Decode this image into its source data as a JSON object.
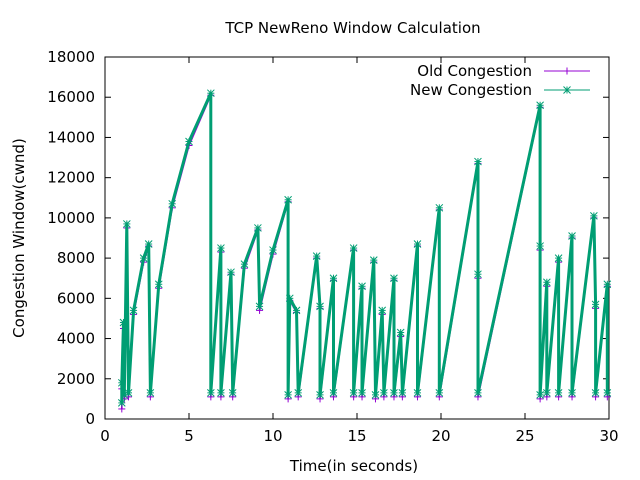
{
  "chart_data": {
    "type": "line",
    "title": "TCP NewReno Window Calculation",
    "xlabel": "Time(in seconds)",
    "ylabel": "Congestion Window(cwnd)",
    "xlim": [
      0,
      30
    ],
    "ylim": [
      0,
      18000
    ],
    "x_ticks": [
      0,
      5,
      10,
      15,
      20,
      25,
      30
    ],
    "y_ticks": [
      0,
      2000,
      4000,
      6000,
      8000,
      10000,
      12000,
      14000,
      16000,
      18000
    ],
    "grid": false,
    "legend_position": "top-right",
    "series": [
      {
        "name": "Old Congestion",
        "color": "#9400d3",
        "marker": "plus",
        "points": [
          [
            1.0,
            500
          ],
          [
            1.0,
            1500
          ],
          [
            1.1,
            4500
          ],
          [
            1.15,
            1000
          ],
          [
            1.3,
            9500
          ],
          [
            1.4,
            1100
          ],
          [
            1.7,
            5200
          ],
          [
            2.3,
            7800
          ],
          [
            2.6,
            8600
          ],
          [
            2.7,
            1100
          ],
          [
            3.2,
            6500
          ],
          [
            4.0,
            10500
          ],
          [
            5.0,
            13600
          ],
          [
            6.3,
            16100
          ],
          [
            6.3,
            1100
          ],
          [
            6.9,
            8300
          ],
          [
            6.9,
            1100
          ],
          [
            7.5,
            7200
          ],
          [
            7.6,
            1100
          ],
          [
            8.3,
            7500
          ],
          [
            9.1,
            9400
          ],
          [
            9.2,
            5400
          ],
          [
            10.0,
            8200
          ],
          [
            10.9,
            10800
          ],
          [
            10.9,
            1000
          ],
          [
            11.0,
            5900
          ],
          [
            11.4,
            5300
          ],
          [
            11.5,
            1100
          ],
          [
            12.6,
            8000
          ],
          [
            12.8,
            5500
          ],
          [
            12.8,
            1000
          ],
          [
            13.6,
            6900
          ],
          [
            13.6,
            1100
          ],
          [
            14.8,
            8400
          ],
          [
            14.8,
            1100
          ],
          [
            15.3,
            6500
          ],
          [
            15.3,
            1100
          ],
          [
            16.0,
            7800
          ],
          [
            16.1,
            1000
          ],
          [
            16.5,
            5200
          ],
          [
            16.6,
            1100
          ],
          [
            17.2,
            6900
          ],
          [
            17.2,
            1100
          ],
          [
            17.6,
            4100
          ],
          [
            17.7,
            1100
          ],
          [
            18.6,
            8600
          ],
          [
            18.6,
            1100
          ],
          [
            19.9,
            10400
          ],
          [
            19.9,
            1100
          ],
          [
            22.2,
            12700
          ],
          [
            22.2,
            7000
          ],
          [
            22.2,
            1100
          ],
          [
            25.9,
            15500
          ],
          [
            25.9,
            8400
          ],
          [
            25.9,
            1000
          ],
          [
            26.3,
            6600
          ],
          [
            26.3,
            1100
          ],
          [
            27.0,
            7800
          ],
          [
            27.0,
            1100
          ],
          [
            27.8,
            9000
          ],
          [
            27.8,
            1100
          ],
          [
            29.1,
            10000
          ],
          [
            29.2,
            5500
          ],
          [
            29.2,
            1100
          ],
          [
            29.9,
            6600
          ],
          [
            29.9,
            1100
          ]
        ]
      },
      {
        "name": "New Congestion",
        "color": "#009e73",
        "marker": "cross",
        "points": [
          [
            1.0,
            800
          ],
          [
            1.0,
            1800
          ],
          [
            1.1,
            4800
          ],
          [
            1.15,
            1200
          ],
          [
            1.3,
            9700
          ],
          [
            1.4,
            1300
          ],
          [
            1.7,
            5400
          ],
          [
            2.3,
            8000
          ],
          [
            2.6,
            8700
          ],
          [
            2.7,
            1300
          ],
          [
            3.2,
            6700
          ],
          [
            4.0,
            10700
          ],
          [
            5.0,
            13800
          ],
          [
            6.3,
            16200
          ],
          [
            6.3,
            1300
          ],
          [
            6.9,
            8500
          ],
          [
            6.9,
            1300
          ],
          [
            7.5,
            7300
          ],
          [
            7.6,
            1300
          ],
          [
            8.3,
            7700
          ],
          [
            9.1,
            9500
          ],
          [
            9.2,
            5600
          ],
          [
            10.0,
            8400
          ],
          [
            10.9,
            10900
          ],
          [
            10.9,
            1200
          ],
          [
            11.0,
            6000
          ],
          [
            11.4,
            5400
          ],
          [
            11.5,
            1300
          ],
          [
            12.6,
            8100
          ],
          [
            12.8,
            5600
          ],
          [
            12.8,
            1200
          ],
          [
            13.6,
            7000
          ],
          [
            13.6,
            1300
          ],
          [
            14.8,
            8500
          ],
          [
            14.8,
            1300
          ],
          [
            15.3,
            6600
          ],
          [
            15.3,
            1300
          ],
          [
            16.0,
            7900
          ],
          [
            16.1,
            1200
          ],
          [
            16.5,
            5400
          ],
          [
            16.6,
            1300
          ],
          [
            17.2,
            7000
          ],
          [
            17.2,
            1300
          ],
          [
            17.6,
            4300
          ],
          [
            17.7,
            1300
          ],
          [
            18.6,
            8700
          ],
          [
            18.6,
            1300
          ],
          [
            19.9,
            10500
          ],
          [
            19.9,
            1300
          ],
          [
            22.2,
            12800
          ],
          [
            22.2,
            7200
          ],
          [
            22.2,
            1300
          ],
          [
            25.9,
            15600
          ],
          [
            25.9,
            8600
          ],
          [
            25.9,
            1200
          ],
          [
            26.3,
            6800
          ],
          [
            26.3,
            1300
          ],
          [
            27.0,
            8000
          ],
          [
            27.0,
            1300
          ],
          [
            27.8,
            9100
          ],
          [
            27.8,
            1300
          ],
          [
            29.1,
            10100
          ],
          [
            29.2,
            5700
          ],
          [
            29.2,
            1300
          ],
          [
            29.9,
            6700
          ],
          [
            29.9,
            1300
          ]
        ]
      }
    ]
  }
}
